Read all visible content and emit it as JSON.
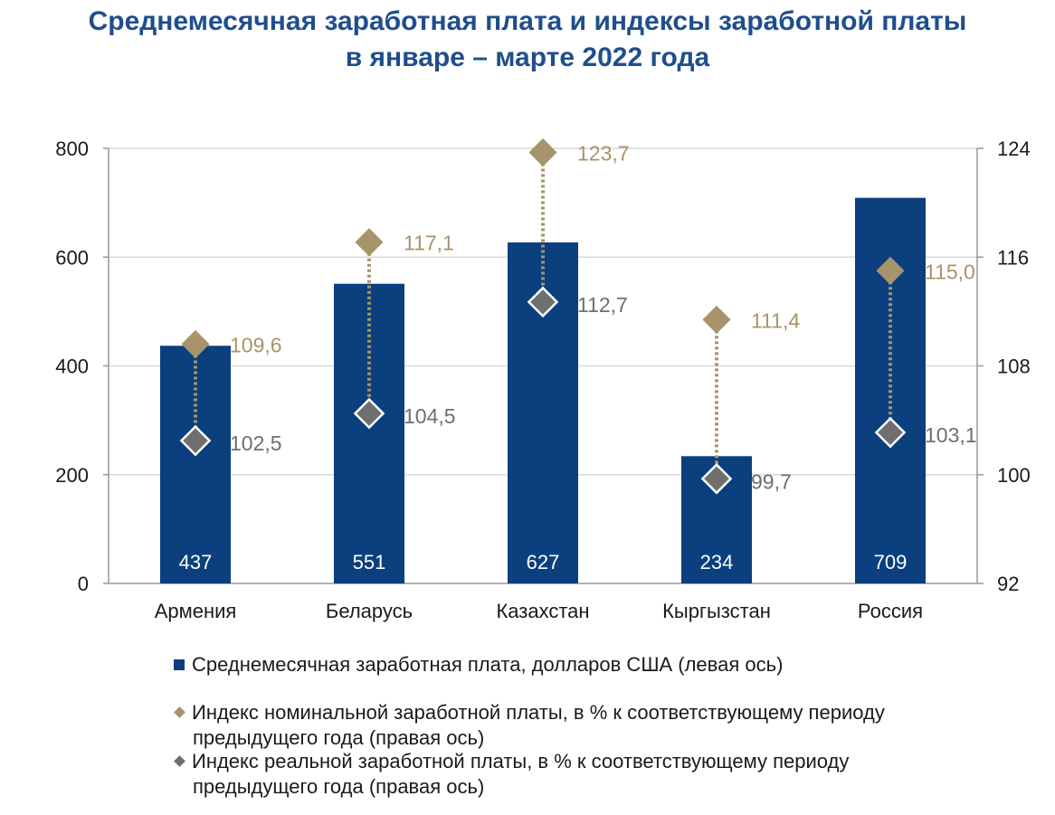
{
  "chart_data": {
    "type": "bar",
    "title_line1": "Среднемесячная заработная плата и индексы заработной платы",
    "title_line2": "в январе – марте 2022 года",
    "categories": [
      "Армения",
      "Беларусь",
      "Казахстан",
      "Кыргызстан",
      "Россия"
    ],
    "series": [
      {
        "name": "Среднемесячная заработная плата, долларов США (левая ось)",
        "type": "bar",
        "axis": "left",
        "values": [
          437,
          551,
          627,
          234,
          709
        ],
        "labels": [
          "437",
          "551",
          "627",
          "234",
          "709"
        ],
        "color": "#0b3f7e"
      },
      {
        "name_line1": "Индекс номинальной заработной платы, в % к соответствующему периоду",
        "name_line2": "предыдущего года (правая ось)",
        "type": "scatter",
        "axis": "right",
        "values": [
          109.6,
          117.1,
          123.7,
          111.4,
          115.0
        ],
        "labels": [
          "109,6",
          "117,1",
          "123,7",
          "111,4",
          "115,0"
        ],
        "color": "#a8946a"
      },
      {
        "name_line1": "Индекс реальной заработной платы, в % к соответствующему периоду",
        "name_line2": "предыдущего года (правая ось)",
        "type": "scatter",
        "axis": "right",
        "values": [
          102.5,
          104.5,
          112.7,
          99.7,
          103.1
        ],
        "labels": [
          "102,5",
          "104,5",
          "112,7",
          "99,7",
          "103,1"
        ],
        "color": "#6f6f6f"
      }
    ],
    "left_axis": {
      "range": [
        0,
        800
      ],
      "ticks": [
        "0",
        "200",
        "400",
        "600",
        "800"
      ],
      "tick_values": [
        0,
        200,
        400,
        600,
        800
      ]
    },
    "right_axis": {
      "range": [
        92,
        124
      ],
      "ticks": [
        "92",
        "100",
        "108",
        "116",
        "124"
      ],
      "tick_values": [
        92,
        100,
        108,
        116,
        124
      ]
    },
    "grid": true,
    "legend_placement": "bottom"
  }
}
